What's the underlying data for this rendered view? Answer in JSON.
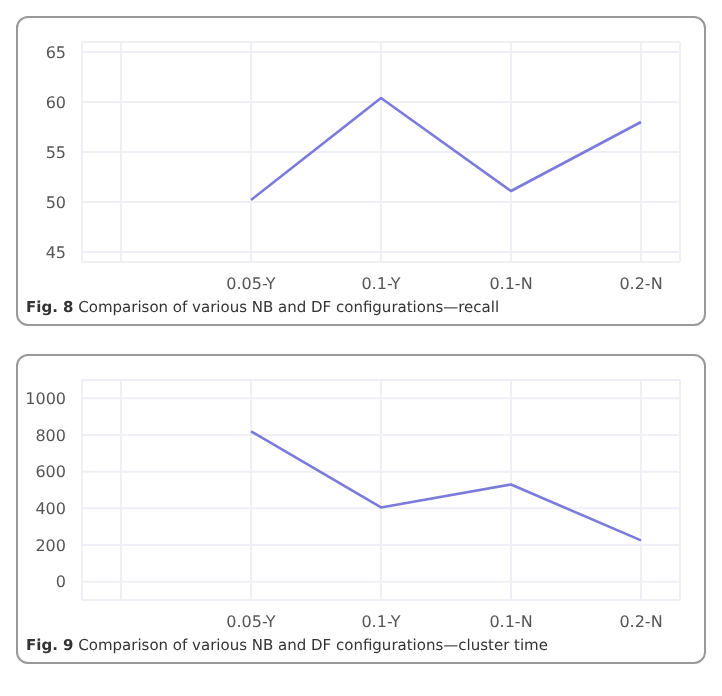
{
  "chart_data": [
    {
      "type": "line",
      "title": "Fig. 8  Comparison of various NB and DF configurations—recall",
      "categories": [
        null,
        "0.05-Y",
        "0.1-Y",
        "0.1-N",
        "0.2-N"
      ],
      "values": [
        null,
        50.2,
        60.4,
        51.1,
        58.0
      ],
      "color": "#7b7bdb",
      "ylim": [
        44,
        66
      ],
      "yticks": [
        45,
        50,
        55,
        60,
        65
      ],
      "grid": true,
      "marker": "none"
    },
    {
      "type": "line",
      "title": "Fig. 9  Comparison of various NB and DF configurations—cluster time",
      "categories": [
        null,
        "0.05-Y",
        "0.1-Y",
        "0.1-N",
        "0.2-N"
      ],
      "values": [
        null,
        820,
        405,
        530,
        225
      ],
      "color": "#7b7bdb",
      "ylim": [
        -100,
        1100
      ],
      "yticks": [
        0,
        200,
        400,
        600,
        800,
        1000
      ],
      "grid": true,
      "marker": "none"
    }
  ]
}
